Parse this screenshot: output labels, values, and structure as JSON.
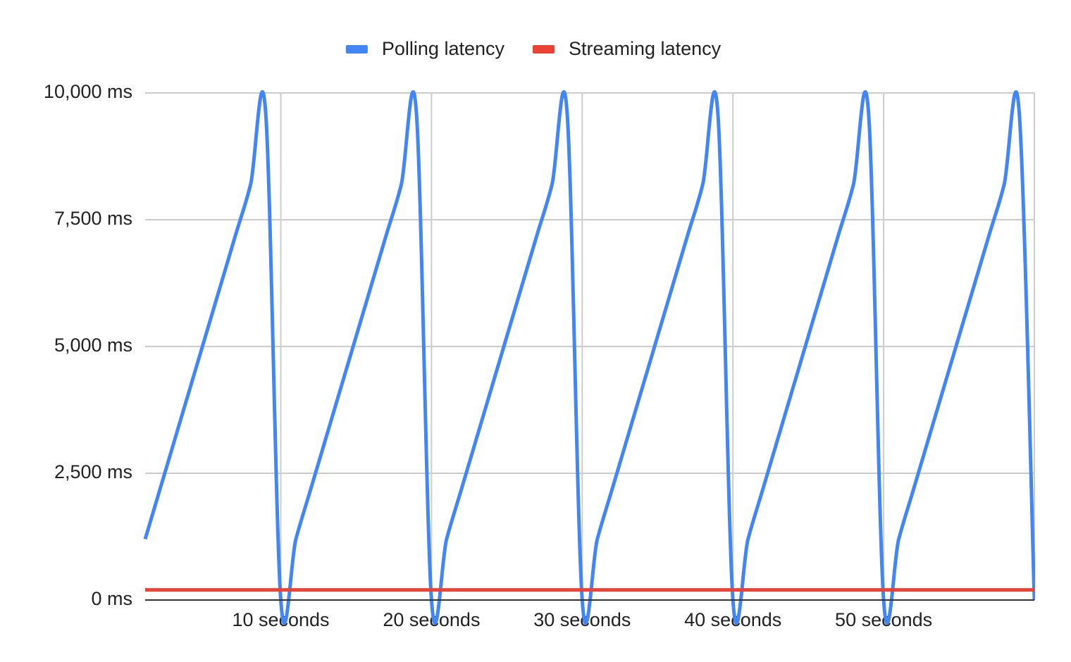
{
  "chart_data": {
    "type": "line",
    "x": [
      1,
      2,
      3,
      4,
      5,
      6,
      7,
      8,
      9,
      10,
      11,
      12,
      13,
      14,
      15,
      16,
      17,
      18,
      19,
      20,
      21,
      22,
      23,
      24,
      25,
      26,
      27,
      28,
      29,
      30,
      31,
      32,
      33,
      34,
      35,
      36,
      37,
      38,
      39,
      40,
      41,
      42,
      43,
      44,
      45,
      46,
      47,
      48,
      49,
      50,
      51,
      52,
      53,
      54,
      55,
      56,
      57,
      58,
      59,
      60
    ],
    "series": [
      {
        "name": "Polling latency",
        "color": "#4285f4",
        "values": [
          1200,
          2200,
          3200,
          4200,
          5200,
          6200,
          7200,
          8200,
          9600,
          0,
          1200,
          2200,
          3200,
          4200,
          5200,
          6200,
          7200,
          8200,
          9600,
          0,
          1200,
          2200,
          3200,
          4200,
          5200,
          6200,
          7200,
          8200,
          9600,
          0,
          1200,
          2200,
          3200,
          4200,
          5200,
          6200,
          7200,
          8200,
          9600,
          0,
          1200,
          2200,
          3200,
          4200,
          5200,
          6200,
          7200,
          8200,
          9600,
          0,
          1200,
          2200,
          3200,
          4200,
          5200,
          6200,
          7200,
          8200,
          9600,
          0
        ]
      },
      {
        "name": "Streaming latency",
        "color": "#ea4335",
        "values": [
          200,
          200,
          200,
          200,
          200,
          200,
          200,
          200,
          200,
          200,
          200,
          200,
          200,
          200,
          200,
          200,
          200,
          200,
          200,
          200,
          200,
          200,
          200,
          200,
          200,
          200,
          200,
          200,
          200,
          200,
          200,
          200,
          200,
          200,
          200,
          200,
          200,
          200,
          200,
          200,
          200,
          200,
          200,
          200,
          200,
          200,
          200,
          200,
          200,
          200,
          200,
          200,
          200,
          200,
          200,
          200,
          200,
          200,
          200,
          200
        ]
      }
    ],
    "xlim": [
      1,
      60
    ],
    "xticks": [
      {
        "value": 10,
        "label": "10 seconds"
      },
      {
        "value": 20,
        "label": "20 seconds"
      },
      {
        "value": 30,
        "label": "30 seconds"
      },
      {
        "value": 40,
        "label": "40 seconds"
      },
      {
        "value": 50,
        "label": "50 seconds"
      }
    ],
    "ylim": [
      0,
      10000
    ],
    "yticks": [
      {
        "value": 0,
        "label": "0 ms"
      },
      {
        "value": 2500,
        "label": "2,500 ms"
      },
      {
        "value": 5000,
        "label": "5,000 ms"
      },
      {
        "value": 7500,
        "label": "7,500 ms"
      },
      {
        "value": 10000,
        "label": "10,000 ms"
      }
    ],
    "grid": true,
    "legend": "top"
  }
}
